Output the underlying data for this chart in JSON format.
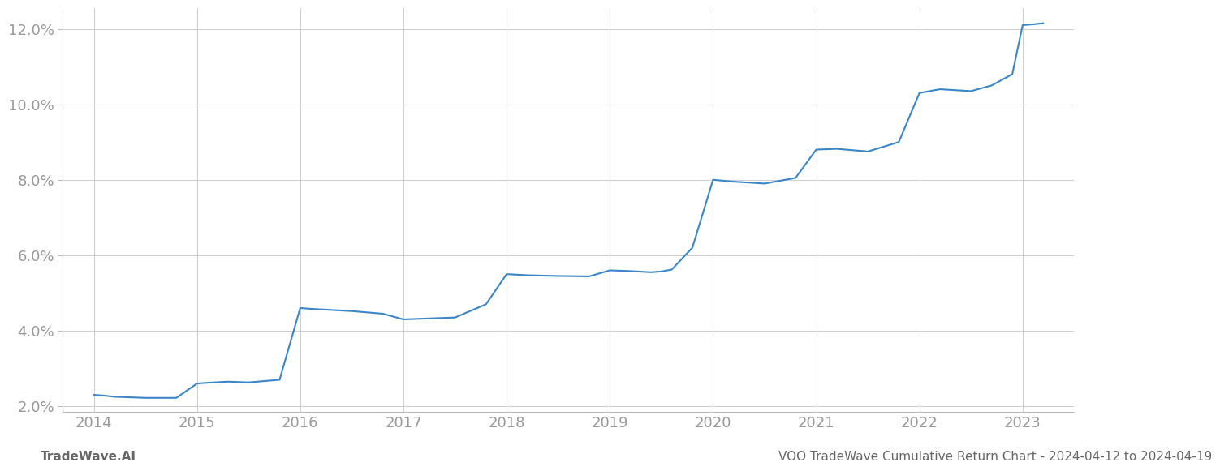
{
  "x_years": [
    2014.0,
    2014.1,
    2014.2,
    2014.5,
    2014.8,
    2015.0,
    2015.1,
    2015.3,
    2015.5,
    2015.8,
    2016.0,
    2016.1,
    2016.3,
    2016.5,
    2016.8,
    2017.0,
    2017.2,
    2017.5,
    2017.8,
    2018.0,
    2018.2,
    2018.5,
    2018.8,
    2019.0,
    2019.2,
    2019.4,
    2019.5,
    2019.6,
    2019.8,
    2020.0,
    2020.2,
    2020.5,
    2020.8,
    2021.0,
    2021.2,
    2021.5,
    2021.8,
    2022.0,
    2022.2,
    2022.5,
    2022.7,
    2022.9,
    2023.0,
    2023.1,
    2023.2
  ],
  "y_values": [
    2.3,
    2.28,
    2.25,
    2.22,
    2.22,
    2.6,
    2.62,
    2.65,
    2.63,
    2.7,
    4.6,
    4.58,
    4.55,
    4.52,
    4.45,
    4.3,
    4.32,
    4.35,
    4.7,
    5.5,
    5.47,
    5.45,
    5.44,
    5.6,
    5.58,
    5.55,
    5.57,
    5.62,
    6.2,
    8.0,
    7.95,
    7.9,
    8.05,
    8.8,
    8.82,
    8.75,
    9.0,
    10.3,
    10.4,
    10.35,
    10.5,
    10.8,
    12.1,
    12.12,
    12.15
  ],
  "line_color": "#3a86c8",
  "line_width": 1.5,
  "background_color": "#ffffff",
  "grid_color": "#d0d0d0",
  "title": "VOO TradeWave Cumulative Return Chart - 2024-04-12 to 2024-04-19",
  "footer_left": "TradeWave.AI",
  "xlim": [
    2013.7,
    2023.5
  ],
  "ylim": [
    1.85,
    12.55
  ],
  "yticks": [
    2.0,
    4.0,
    6.0,
    8.0,
    10.0,
    12.0
  ],
  "xticks": [
    2014,
    2015,
    2016,
    2017,
    2018,
    2019,
    2020,
    2021,
    2022,
    2023
  ],
  "tick_label_color": "#999999",
  "title_color": "#666666",
  "footer_color": "#666666",
  "tick_fontsize": 13,
  "title_fontsize": 11,
  "footer_fontsize": 11
}
